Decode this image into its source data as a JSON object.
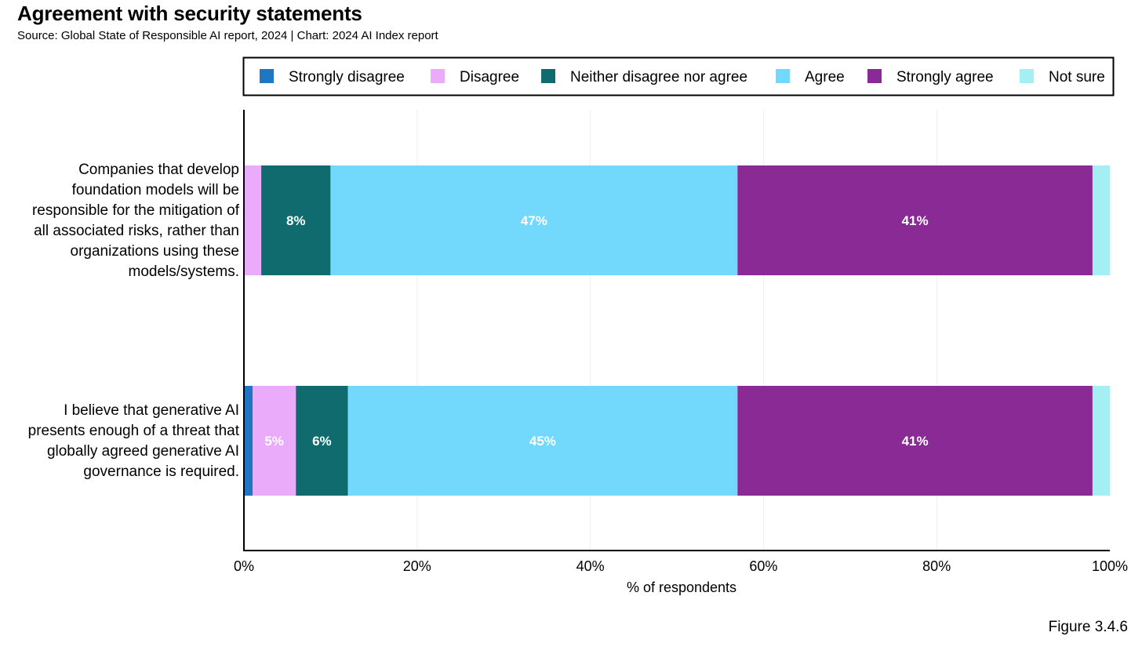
{
  "title": "Agreement with security statements",
  "subtitle": "Source: Global State of Responsible AI report, 2024 | Chart: 2024 AI Index report",
  "figure_label": "Figure 3.4.6",
  "chart_data": {
    "type": "bar",
    "orientation": "horizontal",
    "stacked": true,
    "categories": [
      "Companies that develop foundation models will be responsible for the mitigation of all associated risks, rather than organizations using these models/systems.",
      "I believe that generative AI presents enough of a threat that globally agreed generative AI governance is required."
    ],
    "category_lines": [
      [
        "Companies that develop",
        "foundation models will be",
        "responsible for the mitigation of",
        "all associated risks, rather than",
        "organizations using these",
        "models/systems."
      ],
      [
        "I believe that generative AI",
        "presents enough of a threat that",
        "globally agreed generative AI",
        "governance is required."
      ]
    ],
    "series": [
      {
        "name": "Strongly disagree",
        "color": "#1f77c4",
        "values": [
          0,
          1
        ]
      },
      {
        "name": "Disagree",
        "color": "#e9abfa",
        "values": [
          2,
          5
        ]
      },
      {
        "name": "Neither disagree nor agree",
        "color": "#0f6b6e",
        "values": [
          8,
          6
        ]
      },
      {
        "name": "Agree",
        "color": "#72d8fc",
        "values": [
          47,
          45
        ]
      },
      {
        "name": "Strongly agree",
        "color": "#8a2a94",
        "values": [
          41,
          41
        ]
      },
      {
        "name": "Not sure",
        "color": "#a3eff3",
        "values": [
          2,
          2
        ]
      }
    ],
    "data_labels": [
      [
        null,
        null,
        "8%",
        "47%",
        "41%",
        null
      ],
      [
        null,
        "5%",
        "6%",
        "45%",
        "41%",
        null
      ]
    ],
    "xlabel": "% of respondents",
    "ylabel": "",
    "xlim": [
      0,
      100
    ],
    "xticks": [
      "0%",
      "20%",
      "40%",
      "60%",
      "80%",
      "100%"
    ],
    "grid": true,
    "legend_position": "top"
  }
}
